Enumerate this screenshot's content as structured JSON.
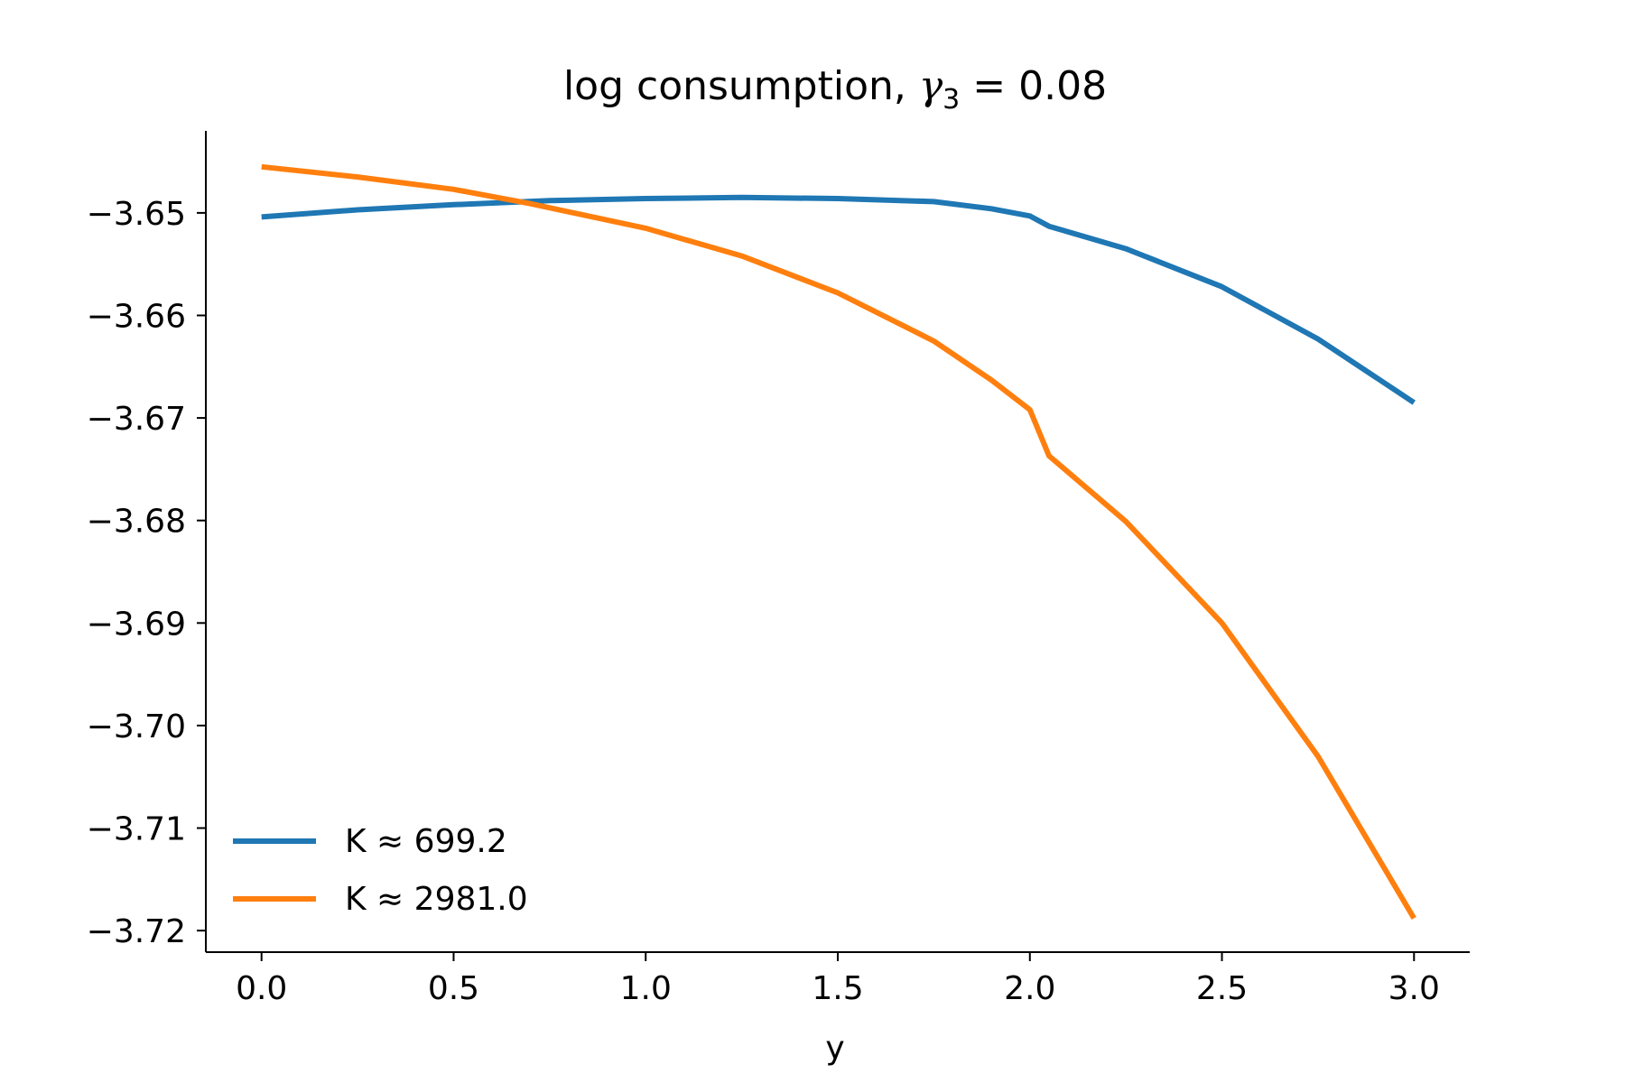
{
  "chart_data": {
    "type": "line",
    "title": {
      "prefix": "log consumption, ",
      "symbol": "γ",
      "subscript": "3",
      "suffix": " = 0.08"
    },
    "xlabel": "y",
    "ylabel": "",
    "xlim": [
      -0.145,
      3.145
    ],
    "ylim": [
      -3.7221,
      -3.642
    ],
    "xticks": [
      0.0,
      0.5,
      1.0,
      1.5,
      2.0,
      2.5,
      3.0
    ],
    "xtick_labels": [
      "0.0",
      "0.5",
      "1.0",
      "1.5",
      "2.0",
      "2.5",
      "3.0"
    ],
    "yticks": [
      -3.65,
      -3.66,
      -3.67,
      -3.68,
      -3.69,
      -3.7,
      -3.71,
      -3.72
    ],
    "ytick_labels": [
      "−3.65",
      "−3.66",
      "−3.67",
      "−3.68",
      "−3.69",
      "−3.70",
      "−3.71",
      "−3.72"
    ],
    "grid": false,
    "legend_position": "lower-left",
    "series": [
      {
        "name": "K ≈ 699.2",
        "color": "#1f77b4",
        "x": [
          0.0,
          0.25,
          0.5,
          0.75,
          1.0,
          1.25,
          1.5,
          1.75,
          1.9,
          2.0,
          2.05,
          2.25,
          2.5,
          2.75,
          3.0
        ],
        "y": [
          -3.6504,
          -3.6497,
          -3.6492,
          -3.6488,
          -3.6486,
          -3.6485,
          -3.6486,
          -3.6489,
          -3.6496,
          -3.6503,
          -3.6513,
          -3.6535,
          -3.6572,
          -3.6623,
          -3.6685
        ]
      },
      {
        "name": "K ≈ 2981.0",
        "color": "#ff7f0e",
        "x": [
          0.0,
          0.25,
          0.5,
          0.7,
          1.0,
          1.25,
          1.5,
          1.75,
          1.9,
          2.0,
          2.05,
          2.25,
          2.5,
          2.75,
          3.0
        ],
        "y": [
          -3.6455,
          -3.6465,
          -3.6477,
          -3.6491,
          -3.6515,
          -3.6542,
          -3.6578,
          -3.6625,
          -3.6663,
          -3.6692,
          -3.6737,
          -3.6801,
          -3.69,
          -3.703,
          -3.7188
        ]
      }
    ]
  }
}
